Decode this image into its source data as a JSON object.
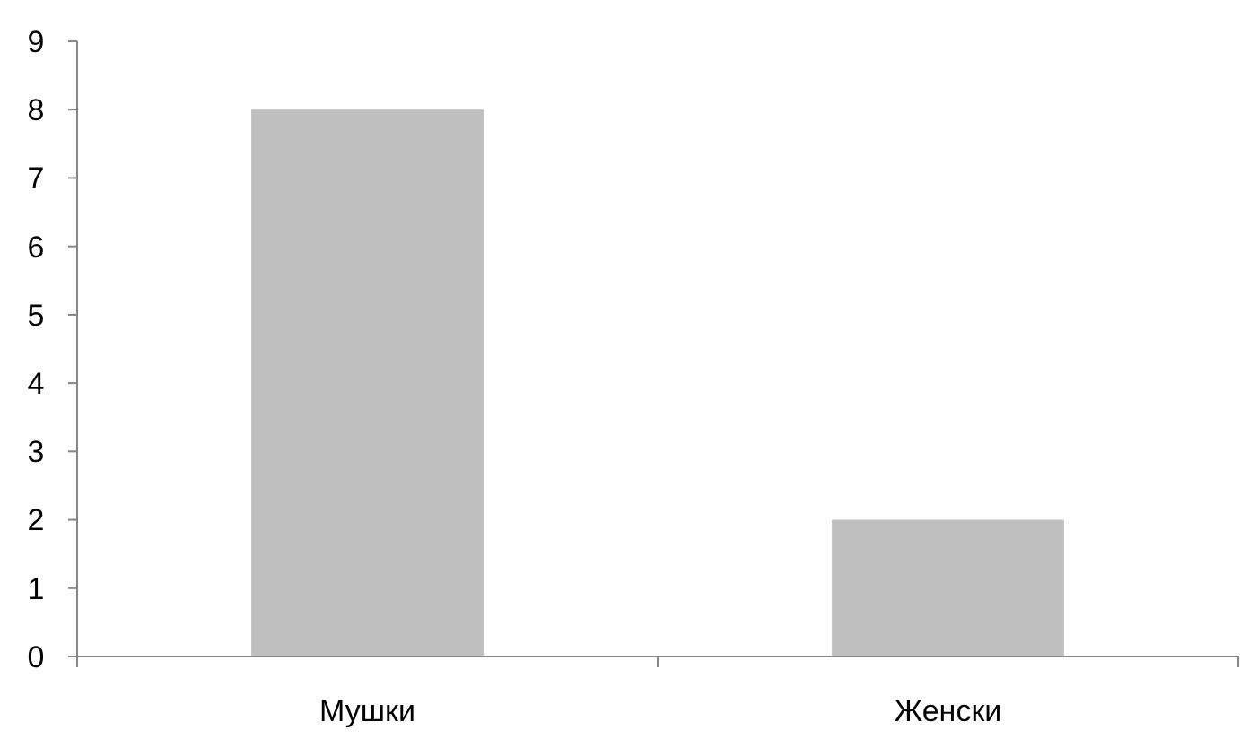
{
  "chart_data": {
    "type": "bar",
    "categories": [
      "Мушки",
      "Женски"
    ],
    "values": [
      8,
      2
    ],
    "color": "#bfbfbf",
    "ylim": [
      0,
      9
    ],
    "yticks": [
      0,
      1,
      2,
      3,
      4,
      5,
      6,
      7,
      8,
      9
    ]
  }
}
